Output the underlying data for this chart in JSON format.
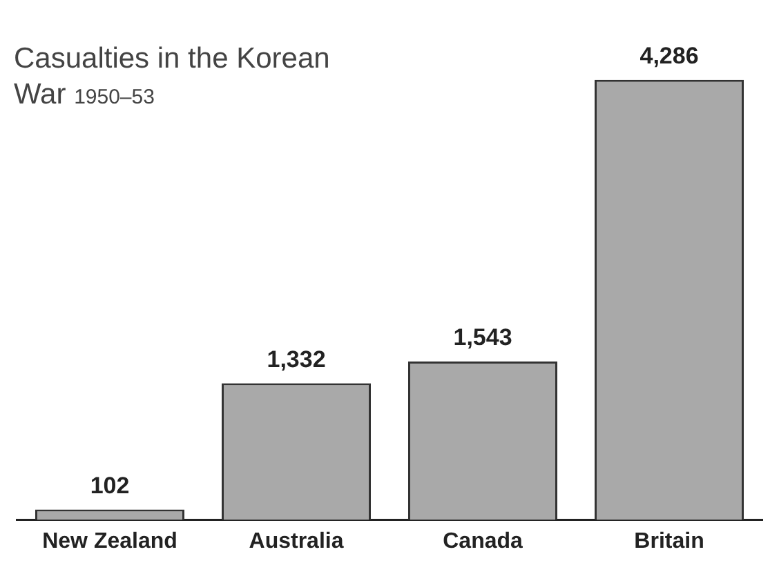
{
  "chart_data": {
    "type": "bar",
    "title": "Casualties in the Korean War",
    "subtitle": "1950–53",
    "categories": [
      "New Zealand",
      "Australia",
      "Canada",
      "Britain"
    ],
    "values": [
      102,
      1332,
      1543,
      4286
    ],
    "value_labels": [
      "102",
      "1,332",
      "1,543",
      "4,286"
    ],
    "color": "#a9a9a9"
  }
}
